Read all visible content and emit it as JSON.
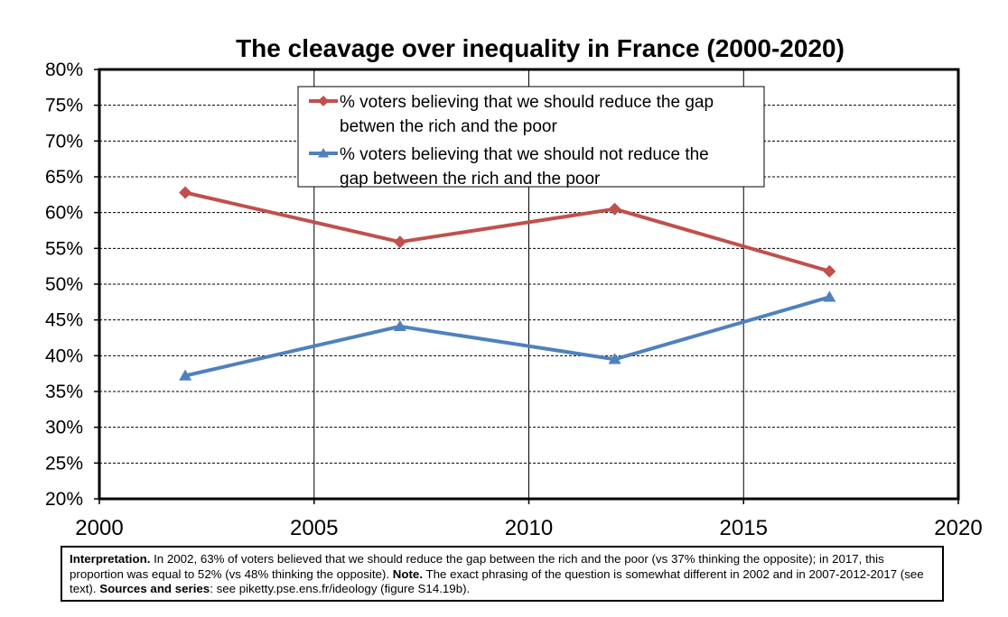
{
  "chart_data": {
    "type": "line",
    "title": "The cleavage over inequality in France (2000-2020)",
    "xlabel": "",
    "ylabel": "",
    "xlim": [
      2000,
      2020
    ],
    "ylim": [
      0.2,
      0.8
    ],
    "x_ticks": [
      "2000",
      "2005",
      "2010",
      "2015",
      "2020"
    ],
    "y_ticks": [
      "20%",
      "25%",
      "30%",
      "35%",
      "40%",
      "45%",
      "50%",
      "55%",
      "60%",
      "65%",
      "70%",
      "75%",
      "80%"
    ],
    "grid": "on",
    "legend_position": "top-center",
    "series": [
      {
        "name_lines": [
          "% voters believing that we should reduce the gap",
          "betwen the rich and the poor"
        ],
        "color": "#c0504d",
        "marker": "diamond",
        "x": [
          2002,
          2007,
          2012,
          2017
        ],
        "values": [
          0.628,
          0.559,
          0.605,
          0.518
        ]
      },
      {
        "name_lines": [
          "% voters believing that we should not reduce the",
          "gap between the rich and the poor"
        ],
        "color": "#4f81bd",
        "marker": "triangle",
        "x": [
          2002,
          2007,
          2012,
          2017
        ],
        "values": [
          0.372,
          0.441,
          0.395,
          0.482
        ]
      }
    ]
  },
  "note": {
    "interpretation_label": "Interpretation.",
    "interpretation_text": " In 2002, 63% of voters believed that we should reduce the gap between the rich and the poor (vs 37% thinking the opposite); in 2017, this proportion was equal to 52% (vs 48% thinking the opposite).",
    "note_label": "Note.",
    "note_text": " The exact phrasing of the question is somewhat different in 2002 and in 2007-2012-2017 (see text). ",
    "sources_label": "Sources and series",
    "sources_text": ": see piketty.pse.ens.fr/ideology (figure S14.19b)."
  }
}
